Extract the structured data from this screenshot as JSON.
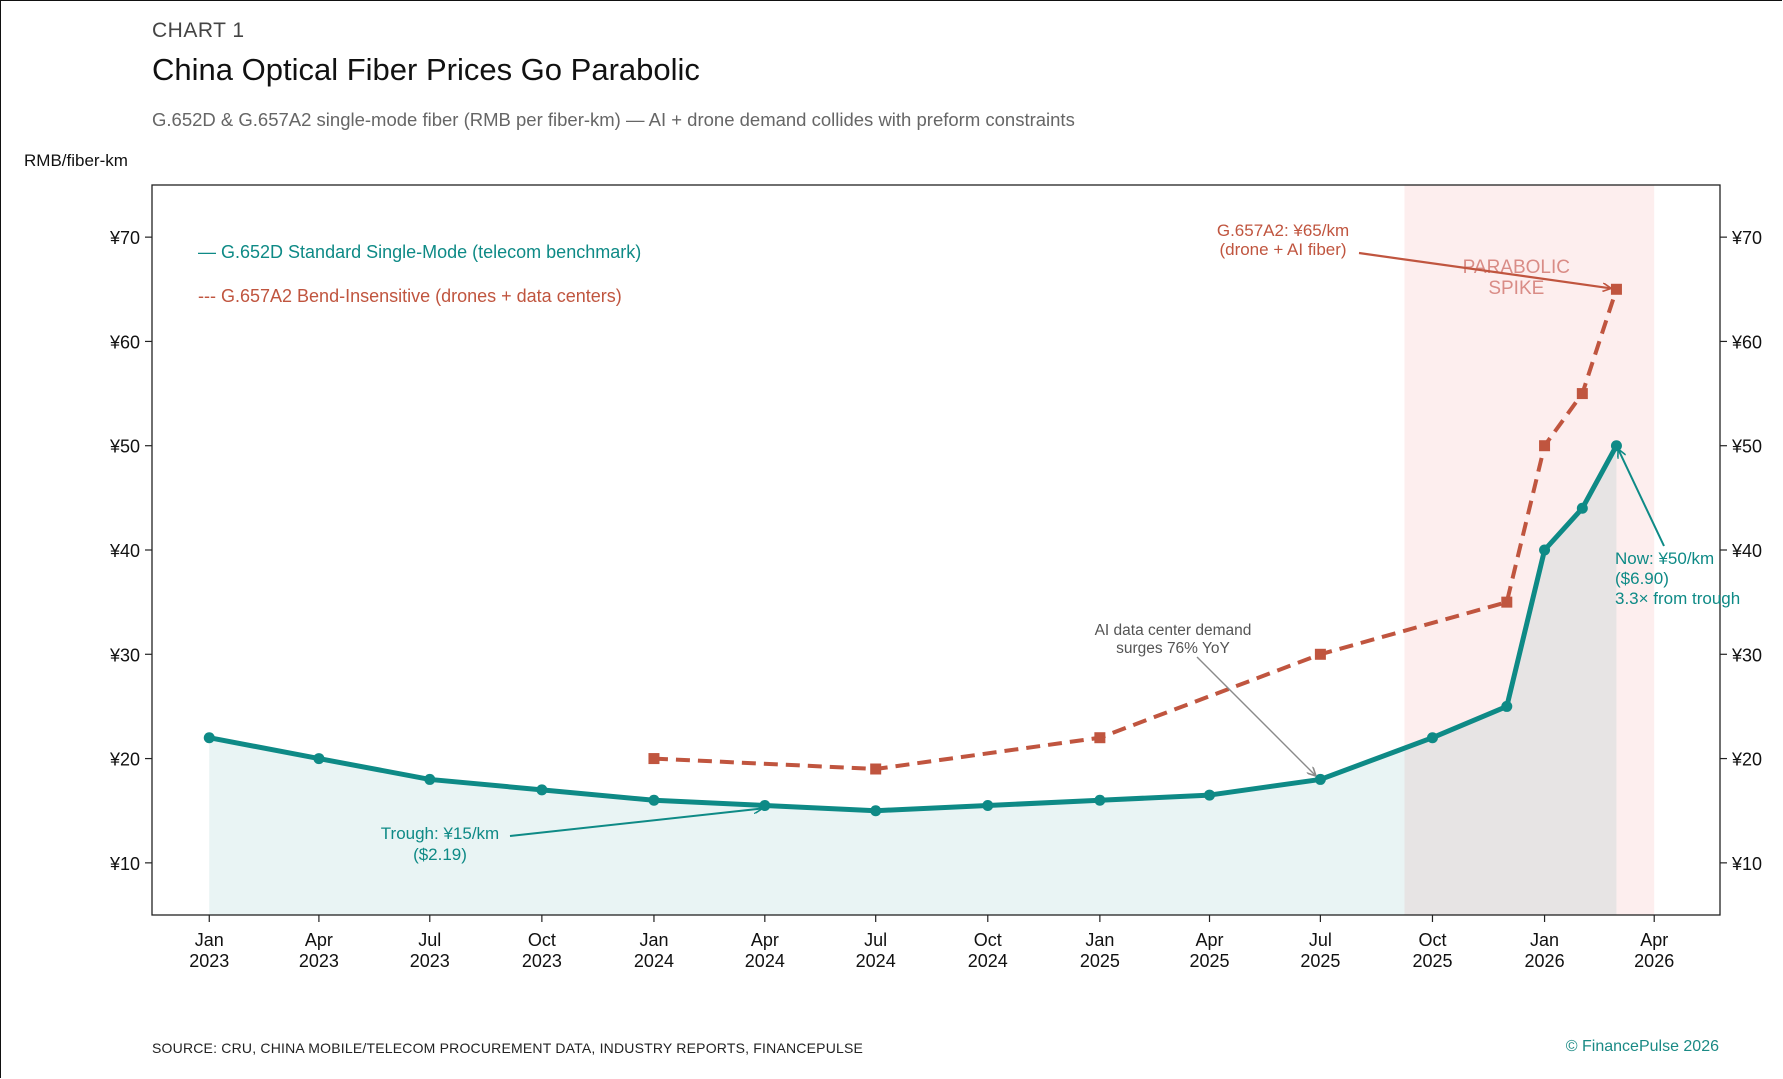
{
  "header": {
    "kicker": "CHART 1",
    "title": "China Optical Fiber Prices Go Parabolic",
    "subtitle": "G.652D & G.657A2 single-mode fiber (RMB per fiber-km) — AI + drone demand collides with preform constraints"
  },
  "footer": {
    "source": "SOURCE: CRU, CHINA MOBILE/TELECOM PROCUREMENT DATA, INDUSTRY REPORTS, FINANCEPULSE",
    "copyright": "© FinancePulse 2026"
  },
  "colors": {
    "teal": "#0e8a86",
    "rust": "#c0553f",
    "shade": "#fdeeee",
    "area": "#e7f2f1",
    "annotation_gray": "#8a8a8a"
  },
  "chart_data": {
    "type": "line",
    "ylabel": "RMB/fiber-km",
    "ylim": [
      5,
      75
    ],
    "yticks": [
      10,
      20,
      30,
      40,
      50,
      60,
      70
    ],
    "ytick_labels": [
      "¥10",
      "¥20",
      "¥30",
      "¥40",
      "¥50",
      "¥60",
      "¥70"
    ],
    "xlim": [
      "2022-11-15",
      "2026-05-25"
    ],
    "xticks": [
      "2023-01",
      "2023-04",
      "2023-07",
      "2023-10",
      "2024-01",
      "2024-04",
      "2024-07",
      "2024-10",
      "2025-01",
      "2025-04",
      "2025-07",
      "2025-10",
      "2026-01",
      "2026-04"
    ],
    "xtick_labels": [
      [
        "Jan",
        "2023"
      ],
      [
        "Apr",
        "2023"
      ],
      [
        "Jul",
        "2023"
      ],
      [
        "Oct",
        "2023"
      ],
      [
        "Jan",
        "2024"
      ],
      [
        "Apr",
        "2024"
      ],
      [
        "Jul",
        "2024"
      ],
      [
        "Oct",
        "2024"
      ],
      [
        "Jan",
        "2025"
      ],
      [
        "Apr",
        "2025"
      ],
      [
        "Jul",
        "2025"
      ],
      [
        "Oct",
        "2025"
      ],
      [
        "Jan",
        "2026"
      ],
      [
        "Apr",
        "2026"
      ]
    ],
    "legend_placement": "top-left",
    "grid": false,
    "series": [
      {
        "name": "G.652D Standard Single-Mode (telecom benchmark)",
        "legend_label": "— G.652D Standard Single-Mode (telecom benchmark)",
        "style": "solid",
        "marker": "circle",
        "x": [
          "2023-01",
          "2023-04",
          "2023-07",
          "2023-10",
          "2024-01",
          "2024-04",
          "2024-07",
          "2024-10",
          "2025-01",
          "2025-04",
          "2025-07",
          "2025-10",
          "2025-12",
          "2026-01",
          "2026-02",
          "2026-03"
        ],
        "values": [
          22,
          20,
          18,
          17,
          16,
          15.5,
          15,
          15.5,
          16,
          16.5,
          18,
          22,
          25,
          40,
          44,
          50
        ]
      },
      {
        "name": "G.657A2 Bend-Insensitive (drones + data centers)",
        "legend_label": "--- G.657A2 Bend-Insensitive (drones + data centers)",
        "style": "dashed",
        "marker": "square",
        "x": [
          "2024-01",
          "2024-07",
          "2025-01",
          "2025-07",
          "2025-12",
          "2026-01",
          "2026-02",
          "2026-03"
        ],
        "values": [
          20,
          19,
          22,
          30,
          35,
          50,
          55,
          65
        ]
      }
    ],
    "shaded_region": {
      "from": "2025-09-08",
      "to": "2026-04-01",
      "label": [
        "PARABOLIC",
        "SPIKE"
      ]
    },
    "annotations": [
      {
        "id": "trough",
        "lines": [
          "Trough: ¥15/km",
          "($2.19)"
        ],
        "target": [
          "2024-04",
          15.5
        ]
      },
      {
        "id": "ai",
        "lines": [
          "AI data center demand",
          "surges 76% YoY"
        ],
        "target": [
          "2025-07",
          18
        ]
      },
      {
        "id": "g657",
        "lines": [
          "G.657A2: ¥65/km",
          "(drone + AI fiber)"
        ],
        "target": [
          "2026-03",
          65
        ]
      },
      {
        "id": "now",
        "lines": [
          "Now: ¥50/km",
          "($6.90)",
          "3.3× from trough"
        ],
        "target": [
          "2026-03",
          50
        ]
      }
    ]
  }
}
